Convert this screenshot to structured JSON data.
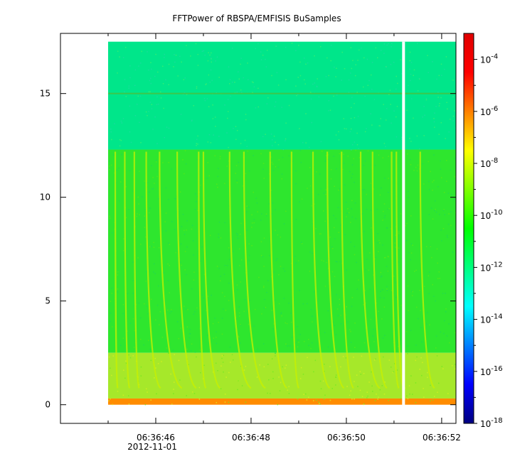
{
  "chart_data": {
    "type": "heatmap",
    "title": "FFTPower of RBSPA/EMFISIS  BuSamples",
    "xlabel": "",
    "ylabel": "",
    "x_ticks": [
      {
        "label": "06:36:46",
        "t": 46.0
      },
      {
        "label": "06:36:48",
        "t": 48.0
      },
      {
        "label": "06:36:50",
        "t": 50.0
      },
      {
        "label": "06:36:52",
        "t": 52.0
      }
    ],
    "x_minor_ticks": [
      45.0,
      47.0,
      49.0,
      51.0
    ],
    "x_date_label": "2012-11-01",
    "xlim": [
      44.0,
      52.3
    ],
    "ylim": [
      -0.9,
      17.9
    ],
    "y_ticks": [
      0,
      5,
      10,
      15
    ],
    "data_extent": {
      "t_start": 45.0,
      "t_end": 52.3,
      "y_min": 0,
      "y_max": 17.5
    },
    "data_gap": {
      "t": 51.2
    },
    "colorbar": {
      "scale": "log",
      "range": [
        1e-18,
        0.001
      ],
      "tick_exponents": [
        -18,
        -16,
        -14,
        -12,
        -10,
        -8,
        -6,
        -4
      ],
      "tick_base": "10",
      "colors": [
        "#000080",
        "#0000ff",
        "#0080ff",
        "#00ffff",
        "#00ff80",
        "#00ff00",
        "#80ff00",
        "#ffff00",
        "#ff8000",
        "#ff0000",
        "#e00000"
      ]
    },
    "regions": [
      {
        "y_range": [
          12.3,
          17.5
        ],
        "approx_power": 1e-11,
        "color": "#00e68a"
      },
      {
        "y_range": [
          2.5,
          12.3
        ],
        "approx_power": 1e-10,
        "color": "#2ee62e"
      },
      {
        "y_range": [
          0.3,
          2.5
        ],
        "approx_power": 1e-09,
        "color": "#a6e82a"
      },
      {
        "y_range": [
          0,
          0.3
        ],
        "approx_power": 1e-07,
        "color": "#ff8c00"
      }
    ],
    "horizontal_line": {
      "y": 15.0,
      "approx_power": 1e-10
    },
    "chorus_streaks": [
      {
        "t_top": 45.15,
        "t_bottom": 45.2
      },
      {
        "t_top": 45.35,
        "t_bottom": 45.45
      },
      {
        "t_top": 45.55,
        "t_bottom": 45.65
      },
      {
        "t_top": 45.8,
        "t_bottom": 46.1
      },
      {
        "t_top": 46.08,
        "t_bottom": 46.55
      },
      {
        "t_top": 46.45,
        "t_bottom": 46.85
      },
      {
        "t_top": 46.9,
        "t_bottom": 47.05
      },
      {
        "t_top": 47.0,
        "t_bottom": 47.35
      },
      {
        "t_top": 47.55,
        "t_bottom": 48.0
      },
      {
        "t_top": 47.85,
        "t_bottom": 48.3
      },
      {
        "t_top": 48.4,
        "t_bottom": 48.75
      },
      {
        "t_top": 48.85,
        "t_bottom": 49.0
      },
      {
        "t_top": 49.3,
        "t_bottom": 49.65
      },
      {
        "t_top": 49.6,
        "t_bottom": 49.95
      },
      {
        "t_top": 49.9,
        "t_bottom": 50.15
      },
      {
        "t_top": 50.3,
        "t_bottom": 50.7
      },
      {
        "t_top": 50.55,
        "t_bottom": 50.85
      },
      {
        "t_top": 50.95,
        "t_bottom": 51.1
      },
      {
        "t_top": 51.05,
        "t_bottom": 51.2
      },
      {
        "t_top": 51.55,
        "t_bottom": 51.85
      }
    ]
  }
}
